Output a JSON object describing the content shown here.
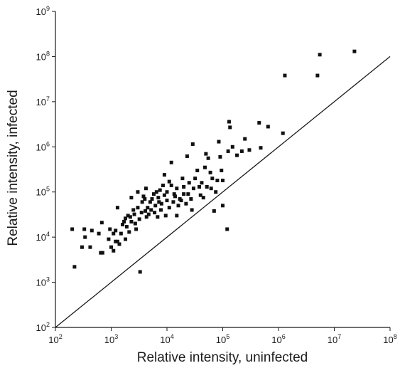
{
  "chart_data": {
    "type": "scatter",
    "xlabel": "Relative intensity, uninfected",
    "ylabel": "Relative intensity, infected",
    "xscale": "log",
    "yscale": "log",
    "xlim": [
      100,
      100000000
    ],
    "ylim": [
      100,
      1000000000
    ],
    "x_tick_exponents": [
      2,
      3,
      4,
      5,
      6,
      7,
      8
    ],
    "y_tick_exponents": [
      2,
      3,
      4,
      5,
      6,
      7,
      8,
      9
    ],
    "tick_base": "10",
    "reference_line": "y = x",
    "grid": false,
    "marker_color": "#111111",
    "points": [
      [
        200,
        15000
      ],
      [
        220,
        2200
      ],
      [
        300,
        6000
      ],
      [
        330,
        15000
      ],
      [
        340,
        10000
      ],
      [
        420,
        6000
      ],
      [
        450,
        14000
      ],
      [
        600,
        12000
      ],
      [
        650,
        4500
      ],
      [
        680,
        21000
      ],
      [
        700,
        4500
      ],
      [
        900,
        9000
      ],
      [
        950,
        15000
      ],
      [
        1000,
        6000
      ],
      [
        1100,
        5000
      ],
      [
        1100,
        12000
      ],
      [
        1200,
        14000
      ],
      [
        1200,
        8000
      ],
      [
        1300,
        8000
      ],
      [
        1300,
        45000
      ],
      [
        1400,
        7000
      ],
      [
        1500,
        12000
      ],
      [
        1600,
        19000
      ],
      [
        1700,
        22000
      ],
      [
        1800,
        26000
      ],
      [
        1800,
        9000
      ],
      [
        1900,
        17000
      ],
      [
        2000,
        30000
      ],
      [
        2100,
        13000
      ],
      [
        2200,
        28000
      ],
      [
        2300,
        22000
      ],
      [
        2300,
        75000
      ],
      [
        2500,
        40000
      ],
      [
        2600,
        32000
      ],
      [
        2700,
        20000
      ],
      [
        2800,
        15000
      ],
      [
        3000,
        100000
      ],
      [
        3000,
        45000
      ],
      [
        3200,
        25000
      ],
      [
        3300,
        1700
      ],
      [
        3500,
        35000
      ],
      [
        3600,
        60000
      ],
      [
        3800,
        80000
      ],
      [
        4000,
        70000
      ],
      [
        4100,
        38000
      ],
      [
        4200,
        120000
      ],
      [
        4300,
        28000
      ],
      [
        4500,
        45000
      ],
      [
        4700,
        32000
      ],
      [
        5000,
        60000
      ],
      [
        5200,
        40000
      ],
      [
        5400,
        70000
      ],
      [
        5800,
        90000
      ],
      [
        6000,
        35000
      ],
      [
        6200,
        50000
      ],
      [
        6500,
        100000
      ],
      [
        6800,
        28000
      ],
      [
        7000,
        75000
      ],
      [
        7200,
        60000
      ],
      [
        7500,
        110000
      ],
      [
        7800,
        40000
      ],
      [
        8000,
        55000
      ],
      [
        8500,
        140000
      ],
      [
        9000,
        240000
      ],
      [
        9000,
        85000
      ],
      [
        9500,
        30000
      ],
      [
        10000,
        65000
      ],
      [
        10000,
        100000
      ],
      [
        11000,
        45000
      ],
      [
        11000,
        170000
      ],
      [
        12000,
        140000
      ],
      [
        12000,
        450000
      ],
      [
        13000,
        60000
      ],
      [
        13500,
        90000
      ],
      [
        14000,
        80000
      ],
      [
        15000,
        30000
      ],
      [
        15000,
        120000
      ],
      [
        16000,
        50000
      ],
      [
        17000,
        70000
      ],
      [
        18000,
        65000
      ],
      [
        19000,
        200000
      ],
      [
        20000,
        90000
      ],
      [
        20000,
        130000
      ],
      [
        22000,
        55000
      ],
      [
        23000,
        620000
      ],
      [
        24000,
        90000
      ],
      [
        25000,
        160000
      ],
      [
        27000,
        70000
      ],
      [
        28000,
        40000
      ],
      [
        29000,
        1150000
      ],
      [
        30000,
        120000
      ],
      [
        32000,
        200000
      ],
      [
        35000,
        300000
      ],
      [
        38000,
        130000
      ],
      [
        40000,
        85000
      ],
      [
        42000,
        160000
      ],
      [
        45000,
        75000
      ],
      [
        48000,
        350000
      ],
      [
        50000,
        700000
      ],
      [
        52000,
        130000
      ],
      [
        55000,
        560000
      ],
      [
        60000,
        270000
      ],
      [
        62000,
        120000
      ],
      [
        65000,
        200000
      ],
      [
        70000,
        38000
      ],
      [
        75000,
        100000
      ],
      [
        80000,
        180000
      ],
      [
        85000,
        1300000
      ],
      [
        90000,
        600000
      ],
      [
        95000,
        300000
      ],
      [
        100000,
        50000
      ],
      [
        100000,
        180000
      ],
      [
        120000,
        15000
      ],
      [
        125000,
        800000
      ],
      [
        130000,
        3600000
      ],
      [
        135000,
        2700000
      ],
      [
        150000,
        1000000
      ],
      [
        180000,
        650000
      ],
      [
        220000,
        800000
      ],
      [
        250000,
        1500000
      ],
      [
        300000,
        850000
      ],
      [
        450000,
        3400000
      ],
      [
        480000,
        950000
      ],
      [
        650000,
        2800000
      ],
      [
        1200000,
        2000000
      ],
      [
        1300000,
        38000000
      ],
      [
        5000000,
        38000000
      ],
      [
        5500000,
        110000000
      ],
      [
        23000000,
        130000000
      ]
    ]
  }
}
